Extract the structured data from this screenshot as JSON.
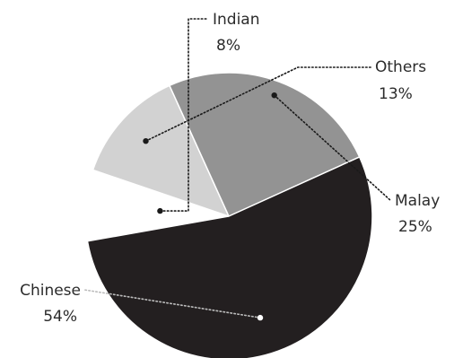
{
  "chart_data": {
    "type": "pie",
    "title": "",
    "slices": [
      {
        "label": "Indian",
        "value": 8,
        "value_label": "8%",
        "color": "#ffffff"
      },
      {
        "label": "Others",
        "value": 13,
        "value_label": "13%",
        "color": "#d2d2d2"
      },
      {
        "label": "Malay",
        "value": 25,
        "value_label": "25%",
        "color": "#939393"
      },
      {
        "label": "Chinese",
        "value": 54,
        "value_label": "54%",
        "color": "#231f20"
      }
    ],
    "legend": "none"
  }
}
